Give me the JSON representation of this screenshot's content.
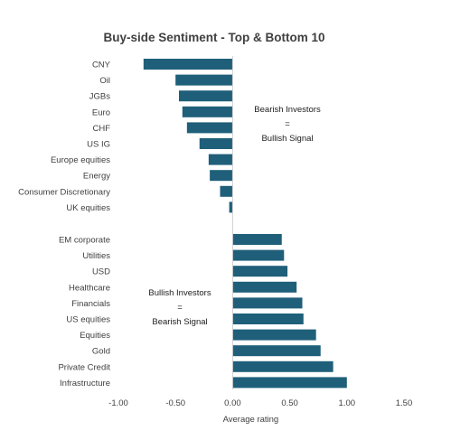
{
  "chart_data": {
    "type": "bar",
    "orientation": "horizontal",
    "title": "Buy-side Sentiment - Top & Bottom 10",
    "xlabel": "Average rating",
    "ylabel": "",
    "xlim": [
      -1.0,
      1.5
    ],
    "xticks": [
      "-1.00",
      "-0.50",
      "0.00",
      "0.50",
      "1.00",
      "1.50"
    ],
    "grid": false,
    "bar_color": "#1f5f7a",
    "groups": [
      {
        "categories": [
          "CNY",
          "Oil",
          "JGBs",
          "Euro",
          "CHF",
          "US IG",
          "Europe equities",
          "Energy",
          "Consumer Discretionary",
          "UK equities"
        ],
        "values": [
          -0.78,
          -0.5,
          -0.47,
          -0.44,
          -0.4,
          -0.29,
          -0.21,
          -0.2,
          -0.11,
          -0.03
        ],
        "annotation": [
          "Bearish Investors",
          "=",
          "Bullish Signal"
        ]
      },
      {
        "categories": [
          "EM corporate",
          "Utilities",
          "USD",
          "Healthcare",
          "Financials",
          "US equities",
          "Equities",
          "Gold",
          "Private Credit",
          "Infrastructure"
        ],
        "values": [
          0.43,
          0.45,
          0.48,
          0.56,
          0.61,
          0.62,
          0.73,
          0.77,
          0.88,
          1.0
        ],
        "annotation": [
          "Bullish Investors",
          "=",
          "Bearish Signal"
        ]
      }
    ]
  }
}
